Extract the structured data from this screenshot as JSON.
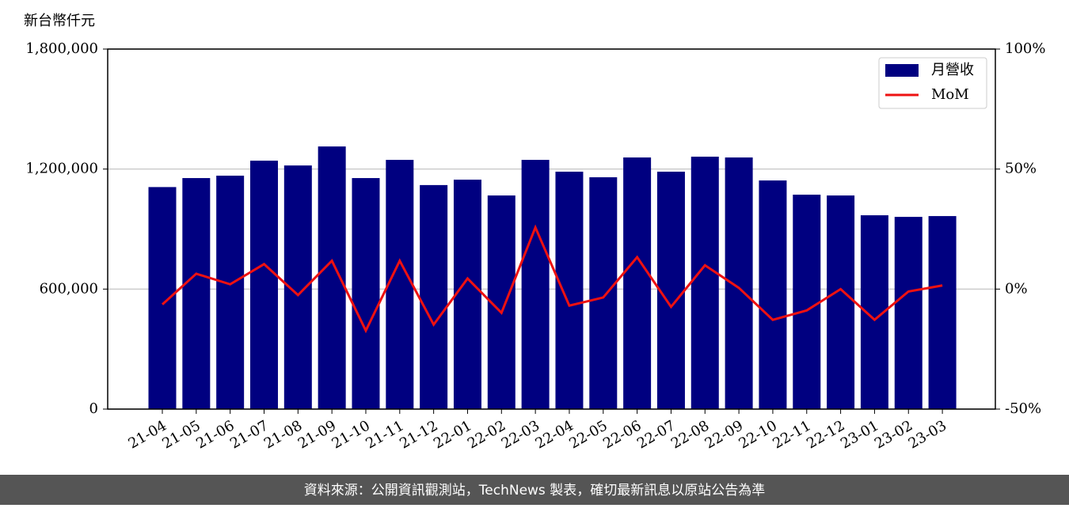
{
  "chart_data": {
    "type": "bar_line",
    "y_label": "新台幣仟元",
    "categories": [
      "21-04",
      "21-05",
      "21-06",
      "21-07",
      "21-08",
      "21-09",
      "21-10",
      "21-11",
      "21-12",
      "22-01",
      "22-02",
      "22-03",
      "22-04",
      "22-05",
      "22-06",
      "22-07",
      "22-08",
      "22-09",
      "22-10",
      "22-11",
      "22-12",
      "23-01",
      "23-02",
      "23-03"
    ],
    "series": [
      {
        "name": "月營收",
        "type": "bar",
        "color": "#000080",
        "values": [
          1110000,
          1155000,
          1167000,
          1242000,
          1218000,
          1313000,
          1155000,
          1246000,
          1120000,
          1147000,
          1068000,
          1246000,
          1187000,
          1159000,
          1258000,
          1187000,
          1262000,
          1258000,
          1143000,
          1072000,
          1068000,
          969000,
          961000,
          965000
        ]
      },
      {
        "name": "MoM",
        "type": "line",
        "axis": "y2",
        "color": "#ee1111",
        "values": [
          -6.4,
          6.4,
          2.0,
          10.4,
          -2.5,
          11.8,
          -17.3,
          11.8,
          -14.8,
          4.4,
          -9.9,
          25.7,
          -6.9,
          -3.5,
          13.3,
          -7.4,
          9.9,
          0.5,
          -12.8,
          -8.9,
          0,
          -12.8,
          -1,
          1.5
        ]
      }
    ],
    "ylim": [
      0,
      1800000
    ],
    "yticks": [
      0,
      {
        "value": 600000,
        "label": "600,000"
      },
      {
        "value": 1200000,
        "label": "1,200,000"
      },
      {
        "value": 1800000,
        "label": "1,800,000"
      }
    ],
    "y2lim": [
      -50,
      100
    ],
    "y2ticks": [
      {
        "value": -50,
        "label": "-50%"
      },
      {
        "value": 0,
        "label": "0%"
      },
      {
        "value": 50,
        "label": "50%"
      },
      {
        "value": 100,
        "label": "100%"
      }
    ],
    "grid": true,
    "legend": "upper right"
  },
  "footer": "資料來源：公開資訊觀測站，TechNews 製表，確切最新訊息以原站公告為準"
}
